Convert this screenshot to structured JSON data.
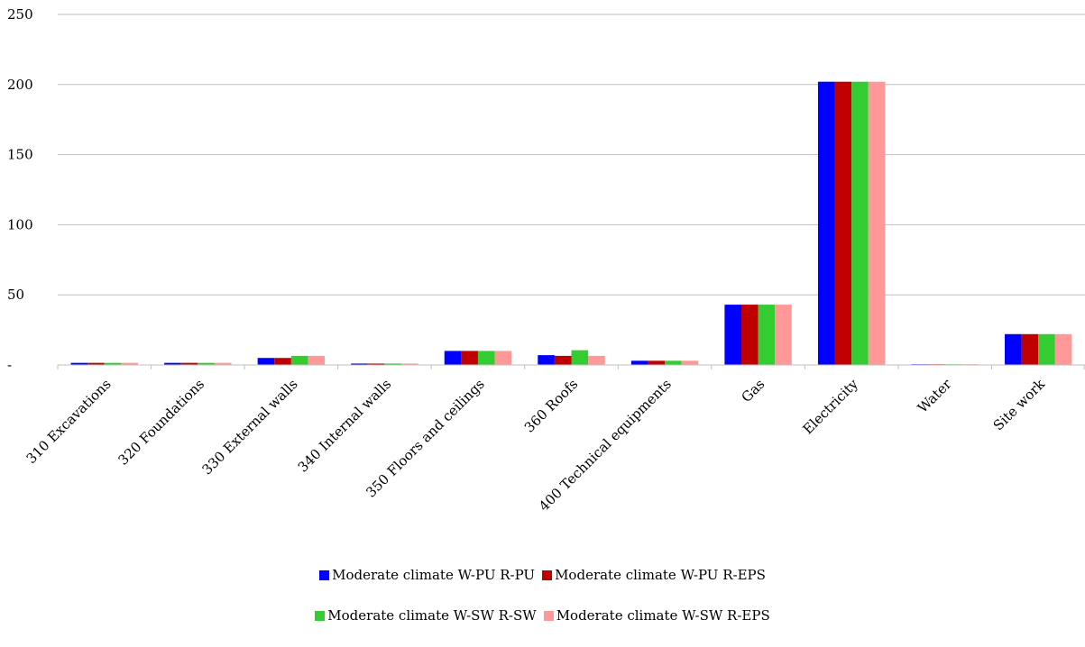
{
  "chart_data": {
    "type": "bar",
    "categories": [
      "310 Excavations",
      "320 Foundations",
      "330 External walls",
      "340 Internal walls",
      "350 Floors and ceilings",
      "360 Roofs",
      "400 Technical equipments",
      "Gas",
      "Electricity",
      "Water",
      "Site work"
    ],
    "series": [
      {
        "name": "Moderate climate W-PU R-PU",
        "color": "#0000ff",
        "values": [
          1.5,
          1.5,
          5,
          1,
          10,
          7,
          3,
          43,
          202,
          0.5,
          22
        ]
      },
      {
        "name": "Moderate climate W-PU R-EPS",
        "color": "#c00000",
        "values": [
          1.5,
          1.5,
          5,
          1,
          10,
          6.5,
          3,
          43,
          202,
          0.5,
          22
        ]
      },
      {
        "name": "Moderate climate W-SW R-SW",
        "color": "#33cc33",
        "values": [
          1.5,
          1.5,
          6.5,
          1,
          10,
          10.5,
          3,
          43,
          202,
          0.5,
          22
        ]
      },
      {
        "name": "Moderate climate W-SW R-EPS",
        "color": "#ff9999",
        "values": [
          1.5,
          1.5,
          6.5,
          1,
          10,
          6.5,
          3,
          43,
          202,
          0.5,
          22
        ]
      }
    ],
    "ylim": [
      0,
      250
    ],
    "yticks": [
      "-",
      "50",
      "100",
      "150",
      "200",
      "250"
    ],
    "grid": true,
    "legend": "bottom"
  }
}
